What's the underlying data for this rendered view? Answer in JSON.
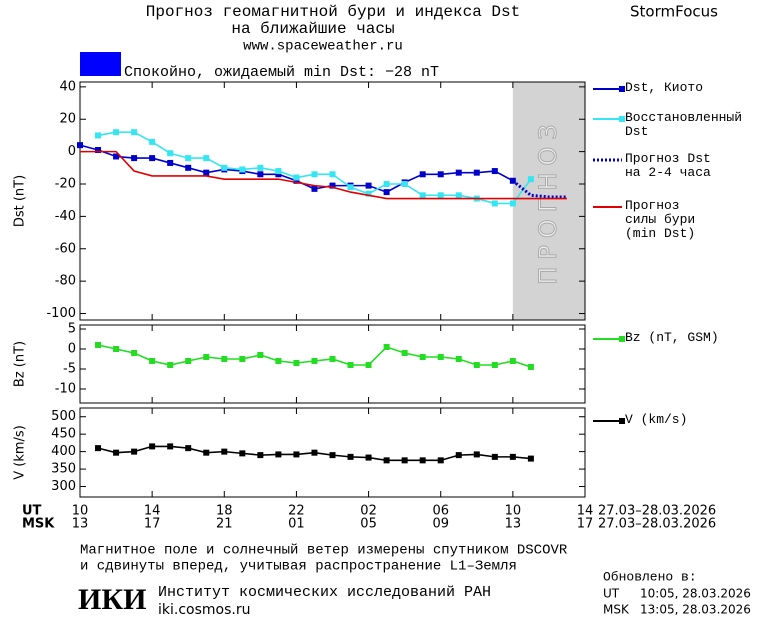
{
  "header": {
    "title": "Прогноз геомагнитной бури и индекса Dst",
    "subtitle": "на ближайшие часы",
    "url": "www.spaceweather.ru",
    "brand": "StormFocus",
    "status": "Спокойно, ожидаемый min Dst: −28 nT",
    "status_color": "#0000ff"
  },
  "chart_data": [
    {
      "type": "line",
      "ylabel": "Dst (nT)",
      "xlim": [
        0,
        28
      ],
      "ylim": [
        -104,
        43
      ],
      "yticks": [
        40,
        20,
        0,
        -20,
        -40,
        -60,
        -80,
        -100
      ],
      "forecast_region": {
        "from": 24,
        "to": 28,
        "label": "ПРОГНОЗ",
        "color": "#d3d3d3"
      },
      "series": [
        {
          "name": "Dst, Киото",
          "color": "#0000cc",
          "marker": "square",
          "dash": false,
          "x": [
            0,
            1,
            2,
            3,
            4,
            5,
            6,
            7,
            8,
            9,
            10,
            11,
            12,
            13,
            14,
            15,
            16,
            17,
            18,
            19,
            20,
            21,
            22,
            23,
            24
          ],
          "values": [
            4,
            1,
            -3,
            -4,
            -4,
            -7,
            -10,
            -13,
            -11,
            -12,
            -14,
            -14,
            -18,
            -23,
            -21,
            -21,
            -21,
            -25,
            -19,
            -14,
            -14,
            -13,
            -13,
            -12,
            -18
          ]
        },
        {
          "name": "Восстановленный\nDst",
          "color": "#33e6f2",
          "marker": "square",
          "dash": false,
          "x": [
            1,
            2,
            3,
            4,
            5,
            6,
            7,
            8,
            9,
            10,
            11,
            12,
            13,
            14,
            15,
            16,
            17,
            18,
            19,
            20,
            21,
            22,
            23,
            24,
            25
          ],
          "values": [
            10,
            12,
            12,
            6,
            -1,
            -4,
            -4,
            -10,
            -11,
            -10,
            -12,
            -16,
            -14,
            -14,
            -22,
            -26,
            -20,
            -20,
            -27,
            -27,
            -27,
            -29,
            -32,
            -32,
            -17
          ]
        },
        {
          "name": "Прогноз Dst\nна 2-4 часа",
          "color": "#0000cc",
          "marker": "none",
          "dash": true,
          "x": [
            24,
            25,
            26,
            27
          ],
          "values": [
            -18,
            -27,
            -28,
            -28
          ]
        },
        {
          "name": "Прогноз\nсилы бури\n(min Dst)",
          "color": "#e00000",
          "marker": "none",
          "dash": false,
          "x": [
            0,
            2,
            3,
            4,
            7,
            8,
            11,
            12,
            13,
            14,
            15,
            16,
            17,
            27
          ],
          "values": [
            0,
            0,
            -12,
            -15,
            -15,
            -17,
            -17,
            -19,
            -21,
            -22,
            -25,
            -27,
            -29,
            -29
          ]
        }
      ]
    },
    {
      "type": "line",
      "ylabel": "Bz (nT)",
      "xlim": [
        0,
        28
      ],
      "ylim": [
        -13.5,
        6
      ],
      "yticks": [
        5,
        0,
        -5,
        -10
      ],
      "series": [
        {
          "name": "Bz (nT, GSM)",
          "color": "#22dd22",
          "marker": "square",
          "dash": false,
          "x": [
            1,
            2,
            3,
            4,
            5,
            6,
            7,
            8,
            9,
            10,
            11,
            12,
            13,
            14,
            15,
            16,
            17,
            18,
            19,
            20,
            21,
            22,
            23,
            24,
            25
          ],
          "values": [
            1,
            0,
            -1,
            -3,
            -4,
            -3,
            -2,
            -2.5,
            -2.5,
            -1.5,
            -3,
            -3.5,
            -3,
            -2.5,
            -4,
            -4,
            0.5,
            -1,
            -2,
            -2,
            -2.5,
            -4,
            -4,
            -3,
            -4.5
          ]
        }
      ]
    },
    {
      "type": "line",
      "ylabel": "V (km/s)",
      "xlim": [
        0,
        28
      ],
      "ylim": [
        270,
        525
      ],
      "yticks": [
        500,
        450,
        400,
        350,
        300
      ],
      "xticks": [
        {
          "value": 0,
          "label": "10"
        },
        {
          "value": 4,
          "label": "14"
        },
        {
          "value": 8,
          "label": "18"
        },
        {
          "value": 12,
          "label": "22"
        },
        {
          "value": 16,
          "label": "02"
        },
        {
          "value": 20,
          "label": "06"
        },
        {
          "value": 24,
          "label": "10"
        },
        {
          "value": 28,
          "label": "14"
        }
      ],
      "xticks_msk": [
        {
          "value": 0,
          "label": "13"
        },
        {
          "value": 4,
          "label": "17"
        },
        {
          "value": 8,
          "label": "21"
        },
        {
          "value": 12,
          "label": "01"
        },
        {
          "value": 16,
          "label": "05"
        },
        {
          "value": 20,
          "label": "09"
        },
        {
          "value": 24,
          "label": "13"
        },
        {
          "value": 28,
          "label": "17"
        }
      ],
      "x_row_labels": [
        "UT",
        "MSK"
      ],
      "x_date_label": "27.03–28.03.2026",
      "series": [
        {
          "name": "V (km/s)",
          "color": "#000000",
          "marker": "square",
          "dash": false,
          "x": [
            1,
            2,
            3,
            4,
            5,
            6,
            7,
            8,
            9,
            10,
            11,
            12,
            13,
            14,
            15,
            16,
            17,
            18,
            19,
            20,
            21,
            22,
            23,
            24,
            25
          ],
          "values": [
            410,
            397,
            400,
            415,
            415,
            410,
            397,
            400,
            395,
            390,
            392,
            392,
            397,
            390,
            385,
            383,
            375,
            375,
            375,
            375,
            390,
            392,
            385,
            385,
            380
          ]
        }
      ]
    }
  ],
  "footer": {
    "note": [
      "Магнитное поле и солнечный ветер измерены спутником DSCOVR",
      "и сдвинуты вперед, учитывая распространение L1–Земля"
    ],
    "logo": "ИКИ",
    "institute": "Институт космических исследований РАН",
    "site": "iki.cosmos.ru",
    "updated_title": "Обновлено в:",
    "updated": [
      [
        "UT",
        "10:05, 28.03.2026"
      ],
      [
        "MSK",
        "13:05, 28.03.2026"
      ]
    ]
  }
}
